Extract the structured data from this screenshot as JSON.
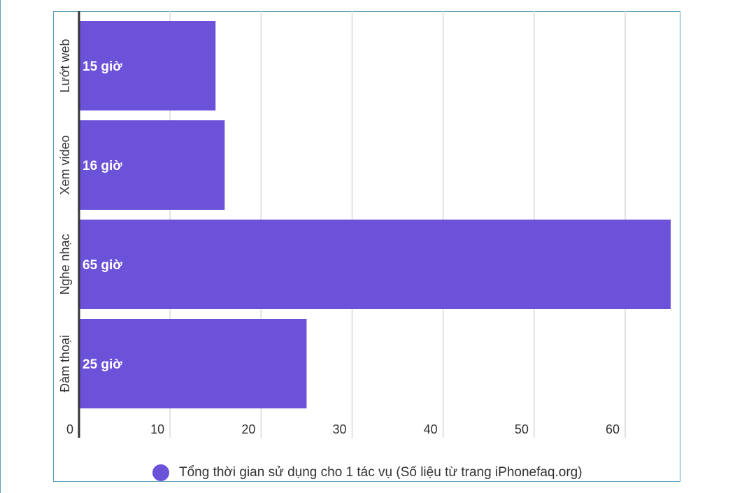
{
  "chart_data": {
    "type": "bar",
    "orientation": "horizontal",
    "categories": [
      "Lướt web",
      "Xem video",
      "Nghe nhạc",
      "Đàm thoại"
    ],
    "series": [
      {
        "name": "Tổng thời gian sử dụng cho 1 tác vụ (Số liệu từ trang iPhonefaq.org)",
        "values": [
          15,
          16,
          65,
          25
        ],
        "data_labels": [
          "15 giờ",
          "16 giờ",
          "65 giờ",
          "25 giờ"
        ]
      }
    ],
    "x_ticks": [
      0,
      10,
      20,
      30,
      40,
      50,
      60
    ],
    "xlim": [
      0,
      66
    ],
    "grid": true,
    "legend_position": "bottom",
    "colors": {
      "bar": "#6b52d9",
      "grid": "#d9d9d9",
      "axis": "#333333",
      "frame": "#5b9fb8"
    }
  }
}
